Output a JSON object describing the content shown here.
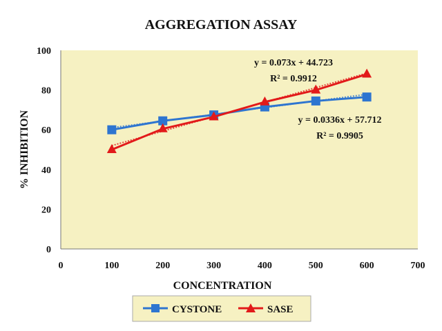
{
  "chart_data": {
    "type": "line",
    "title": "AGGREGATION ASSAY",
    "xlabel": "CONCENTRATION",
    "ylabel": "% INHIBITION",
    "xlim": [
      0,
      700
    ],
    "ylim": [
      0,
      100
    ],
    "x_ticks": [
      "0",
      "100",
      "200",
      "300",
      "400",
      "500",
      "600",
      "700"
    ],
    "y_ticks": [
      "0",
      "20",
      "40",
      "60",
      "80",
      "100"
    ],
    "x": [
      100,
      200,
      300,
      400,
      500,
      600
    ],
    "series": [
      {
        "name": "CYSTONE",
        "color": "#2e75d0",
        "marker": "square",
        "values": [
          60,
          64.5,
          67.5,
          71.5,
          74.5,
          76.5
        ],
        "trendline": {
          "slope": 0.0336,
          "intercept": 57.712
        }
      },
      {
        "name": "SASE",
        "color": "#e21a1a",
        "marker": "triangle",
        "values": [
          50,
          60.5,
          66.5,
          74,
          80,
          88
        ],
        "trendline": {
          "slope": 0.073,
          "intercept": 44.723
        }
      }
    ],
    "annotations": [
      {
        "equation": "y = 0.073x + 44.723",
        "r2": "R² = 0.9912"
      },
      {
        "equation": "y = 0.0336x + 57.712",
        "r2": "R² = 0.9905"
      }
    ],
    "legend_position": "bottom",
    "grid": false,
    "plot_background": "#f6f1c2"
  }
}
